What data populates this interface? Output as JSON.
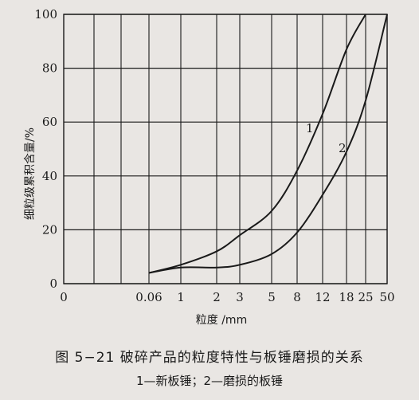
{
  "chart_data": {
    "type": "line",
    "title": "",
    "xlabel": "粒度 /mm",
    "ylabel": "细粒级累积含量/%",
    "ylim": [
      0,
      100
    ],
    "y_ticks": [
      "0",
      "20",
      "40",
      "60",
      "80",
      "100"
    ],
    "x_ticks": [
      "0.06",
      "1",
      "2",
      "3",
      "5",
      "8",
      "12",
      "18",
      "25",
      "50"
    ],
    "grid": true,
    "series": [
      {
        "name": "1",
        "x": [
          "0.06",
          "1",
          "2",
          "3",
          "5",
          "8",
          "12",
          "18",
          "25"
        ],
        "y": [
          4,
          7,
          12,
          18,
          27,
          42,
          63,
          87,
          100
        ]
      },
      {
        "name": "2",
        "x": [
          "0.06",
          "1",
          "2",
          "3",
          "5",
          "8",
          "12",
          "18",
          "25",
          "50"
        ],
        "y": [
          4,
          6,
          6,
          7,
          11,
          19,
          33,
          49,
          68,
          100
        ]
      }
    ]
  },
  "caption": {
    "figure_title": "图 5−21   破碎产品的粒度特性与板锤磨损的关系",
    "legend_note": "1—新板锤；2—磨损的板锤"
  },
  "colors": {
    "ink": "#1a1a1a",
    "paper": "#e9e6e3"
  }
}
